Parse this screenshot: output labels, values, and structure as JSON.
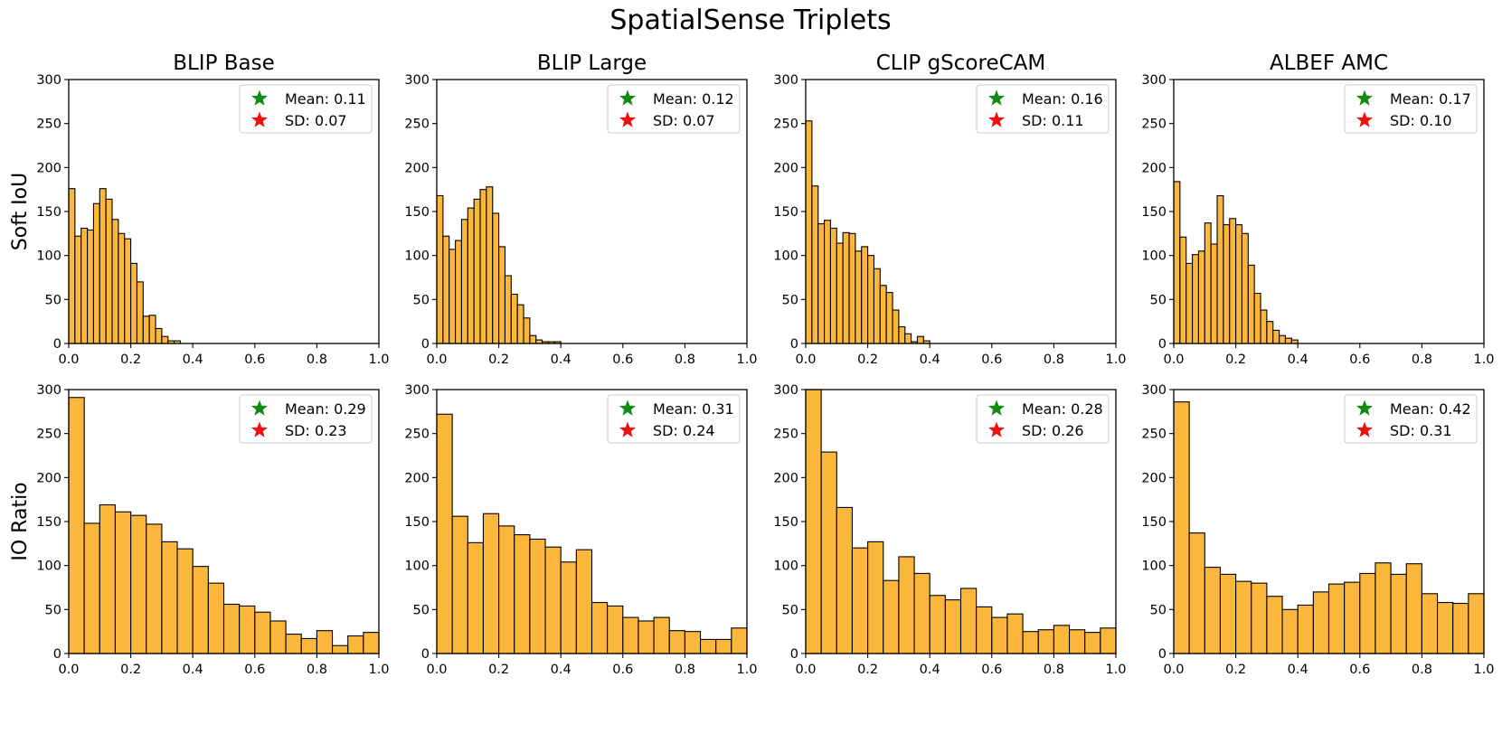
{
  "chart_data": {
    "type": "histogram-grid",
    "title": "SpatialSense Triplets",
    "row_labels": [
      "Soft IoU",
      "IO Ratio"
    ],
    "column_titles": [
      "BLIP Base",
      "BLIP Large",
      "CLIP gScoreCAM",
      "ALBEF AMC"
    ],
    "colors": {
      "bar": "#fbb63c",
      "edge": "#000000",
      "mean_marker": "#138a13",
      "sd_marker": "#ee1111"
    },
    "xlim": [
      0,
      1
    ],
    "ylim": [
      0,
      300
    ],
    "x_ticks": [
      "0.0",
      "0.2",
      "0.4",
      "0.6",
      "0.8",
      "1.0"
    ],
    "y_ticks": [
      "0",
      "50",
      "100",
      "150",
      "200",
      "250",
      "300"
    ],
    "panels": [
      {
        "row": 0,
        "col": 0,
        "title": "BLIP Base",
        "ylabel": "Soft IoU",
        "bin_width": 0.02,
        "values": [
          176,
          122,
          131,
          129,
          159,
          176,
          164,
          141,
          125,
          119,
          91,
          70,
          31,
          32,
          17,
          8,
          3,
          3
        ],
        "legend": {
          "mean": "Mean: 0.11",
          "sd": "SD: 0.07"
        }
      },
      {
        "row": 0,
        "col": 1,
        "title": "BLIP Large",
        "ylabel": "",
        "bin_width": 0.02,
        "values": [
          168,
          122,
          107,
          117,
          141,
          154,
          164,
          175,
          178,
          148,
          110,
          77,
          56,
          44,
          29,
          9,
          4,
          2,
          2,
          2
        ],
        "legend": {
          "mean": "Mean: 0.12",
          "sd": "SD: 0.07"
        }
      },
      {
        "row": 0,
        "col": 2,
        "title": "CLIP gScoreCAM",
        "ylabel": "",
        "bin_width": 0.02,
        "values": [
          253,
          179,
          136,
          140,
          131,
          114,
          126,
          125,
          105,
          110,
          100,
          85,
          66,
          58,
          38,
          19,
          11,
          2,
          8,
          3
        ],
        "legend": {
          "mean": "Mean: 0.16",
          "sd": "SD: 0.11"
        }
      },
      {
        "row": 0,
        "col": 3,
        "title": "ALBEF AMC",
        "ylabel": "",
        "bin_width": 0.02,
        "values": [
          184,
          121,
          91,
          101,
          105,
          137,
          113,
          168,
          135,
          142,
          135,
          125,
          89,
          57,
          38,
          25,
          15,
          9,
          6,
          4
        ],
        "legend": {
          "mean": "Mean: 0.17",
          "sd": "SD: 0.10"
        }
      },
      {
        "row": 1,
        "col": 0,
        "title": "",
        "ylabel": "IO Ratio",
        "bin_width": 0.05,
        "values": [
          291,
          148,
          169,
          161,
          157,
          147,
          127,
          119,
          99,
          80,
          56,
          54,
          47,
          37,
          22,
          17,
          26,
          9,
          20,
          24
        ],
        "legend": {
          "mean": "Mean: 0.29",
          "sd": "SD: 0.23"
        }
      },
      {
        "row": 1,
        "col": 1,
        "title": "",
        "ylabel": "",
        "bin_width": 0.05,
        "values": [
          272,
          156,
          126,
          159,
          145,
          135,
          130,
          121,
          104,
          118,
          58,
          54,
          41,
          37,
          41,
          26,
          25,
          16,
          16,
          29
        ],
        "legend": {
          "mean": "Mean: 0.31",
          "sd": "SD: 0.24"
        }
      },
      {
        "row": 1,
        "col": 2,
        "title": "",
        "ylabel": "",
        "bin_width": 0.05,
        "values": [
          300,
          229,
          166,
          120,
          127,
          83,
          110,
          91,
          66,
          61,
          74,
          53,
          41,
          45,
          25,
          27,
          32,
          27,
          24,
          29
        ],
        "legend": {
          "mean": "Mean: 0.28",
          "sd": "SD: 0.26"
        }
      },
      {
        "row": 1,
        "col": 3,
        "title": "",
        "ylabel": "",
        "bin_width": 0.05,
        "values": [
          286,
          137,
          98,
          90,
          82,
          80,
          65,
          50,
          55,
          70,
          79,
          81,
          91,
          103,
          90,
          102,
          68,
          58,
          57,
          68
        ],
        "legend": {
          "mean": "Mean: 0.42",
          "sd": "SD: 0.31"
        }
      }
    ]
  }
}
